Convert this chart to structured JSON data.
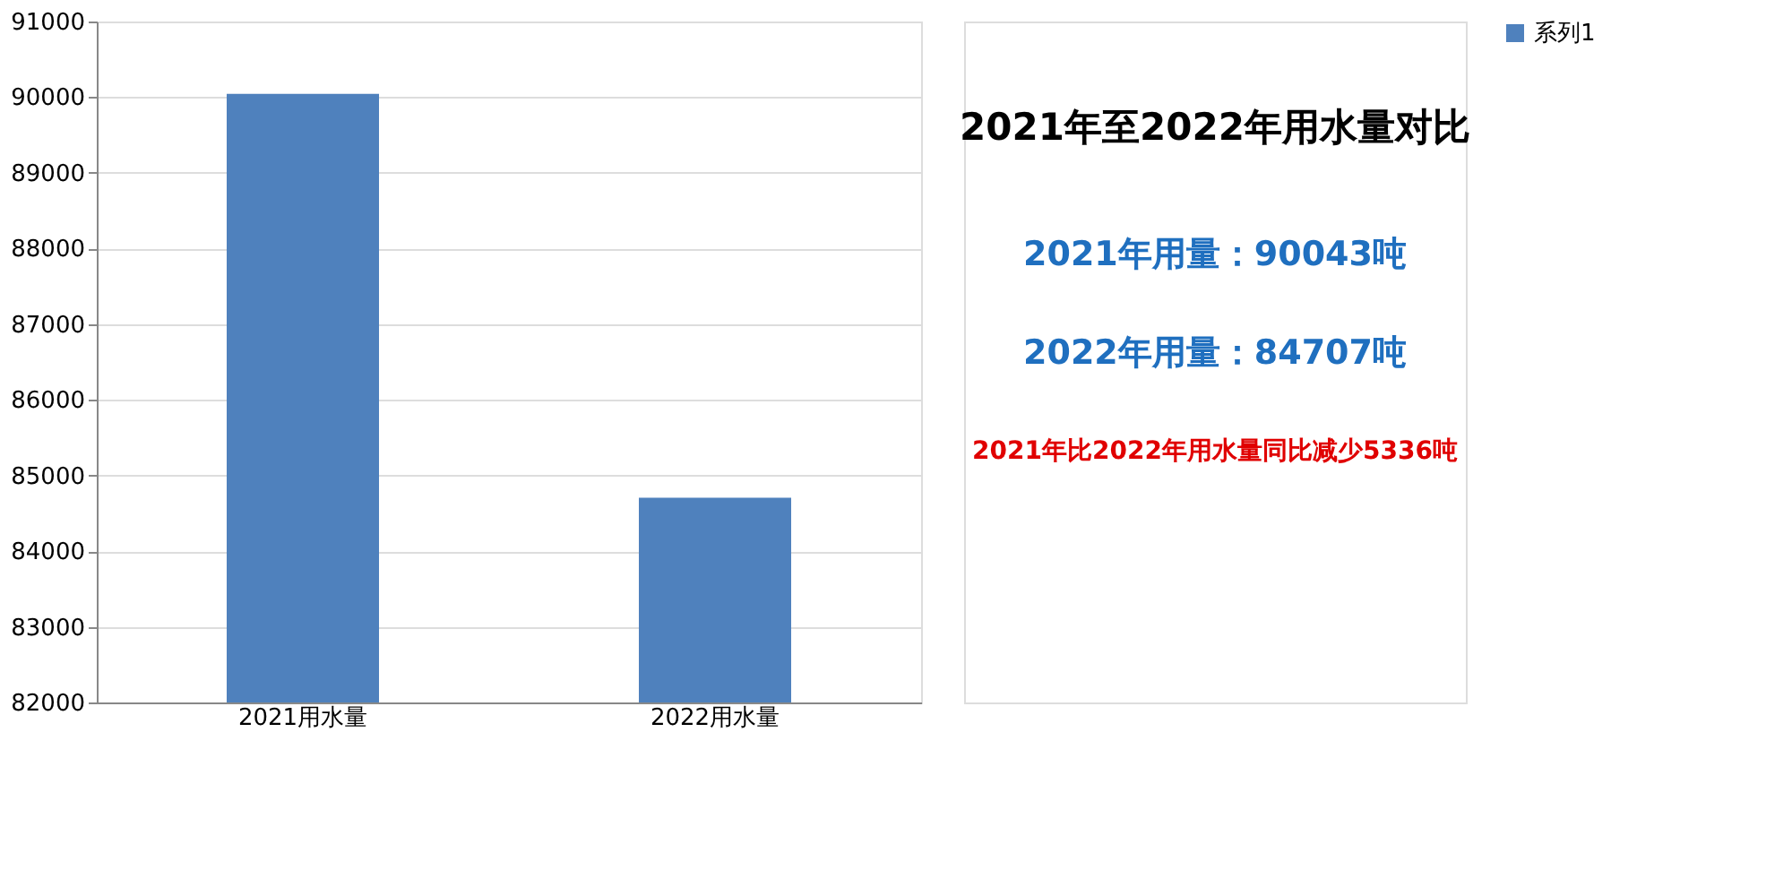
{
  "chart_data": {
    "type": "bar",
    "title": "2021年至2022年用水量对比",
    "categories": [
      "2021用水量",
      "2022用水量"
    ],
    "series": [
      {
        "name": "系列1",
        "color": "#4f81bd",
        "values": [
          90043,
          84707
        ]
      }
    ],
    "ylim": [
      82000,
      91000
    ],
    "yticks": [
      82000,
      83000,
      84000,
      85000,
      86000,
      87000,
      88000,
      89000,
      90000,
      91000
    ],
    "grid": "y",
    "legend": "right",
    "annotations": [
      "2021年用量：90043吨",
      "2022年用量：84707吨",
      "2021年比2022年用水量同比减少5336吨"
    ]
  }
}
